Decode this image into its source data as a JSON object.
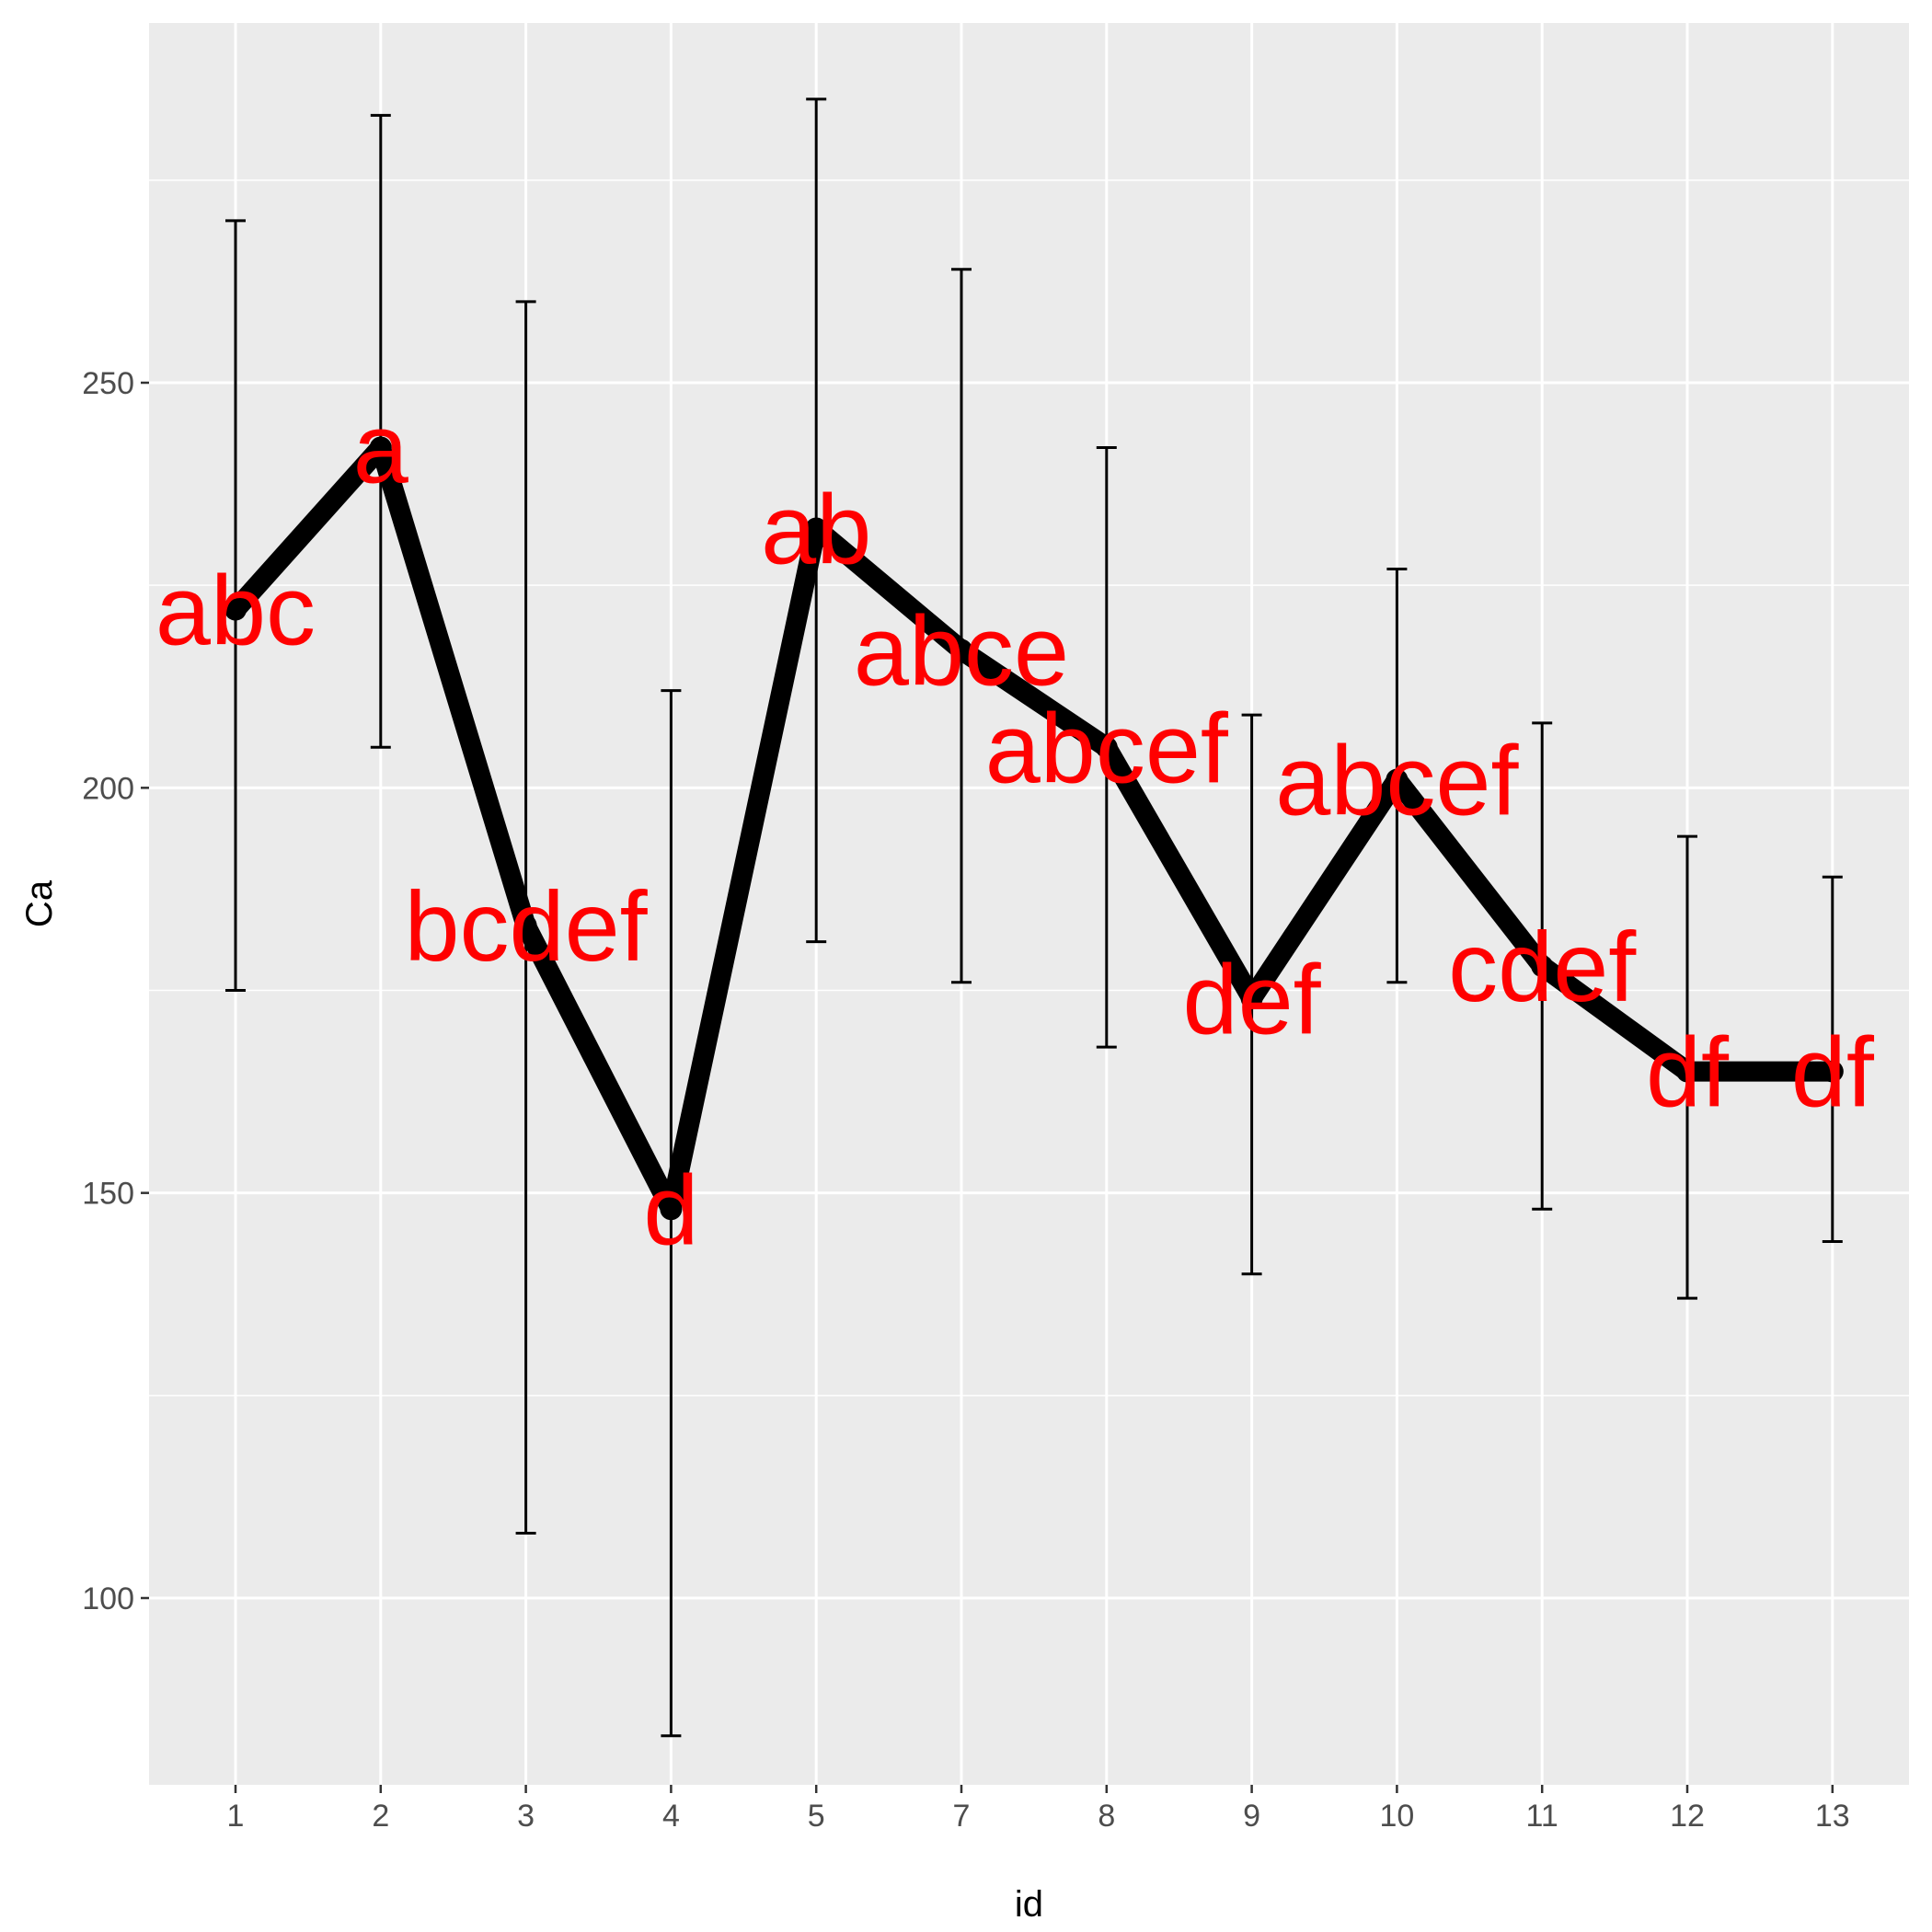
{
  "chart_data": {
    "type": "line",
    "title": "",
    "xlabel": "id",
    "ylabel": "Ca",
    "categories": [
      "1",
      "2",
      "3",
      "4",
      "5",
      "7",
      "8",
      "9",
      "10",
      "11",
      "12",
      "13"
    ],
    "series": [
      {
        "values": [
          222,
          242,
          183,
          148,
          232,
          217,
          205,
          174,
          201,
          178,
          165,
          165
        ],
        "error_lower": [
          175,
          205,
          108,
          83,
          181,
          176,
          168,
          140,
          176,
          148,
          137,
          144
        ],
        "error_upper": [
          270,
          283,
          260,
          212,
          285,
          264,
          242,
          209,
          227,
          208,
          194,
          189
        ],
        "labels": [
          "abc",
          "a",
          "bcdef",
          "d",
          "ab",
          "abce",
          "abcef",
          "def",
          "abcef",
          "cdef",
          "df",
          "df"
        ]
      }
    ],
    "yticks": [
      100,
      150,
      200,
      250
    ],
    "ylim": [
      75,
      294
    ],
    "grid": true,
    "legend": "none",
    "colors": {
      "panel": "#ebebeb",
      "grid": "#ffffff",
      "line": "#000000",
      "errorbar": "#000000",
      "label": "#ff0000",
      "tick_text": "#4d4d4d",
      "tick_mark": "#333333"
    }
  }
}
